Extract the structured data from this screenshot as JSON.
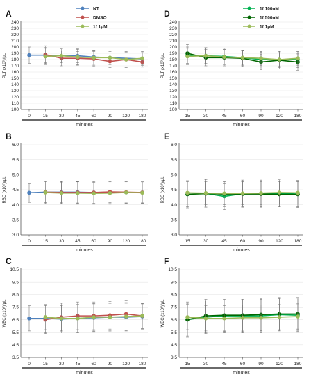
{
  "colors": {
    "NT": "#4f81bd",
    "DMSO": "#c0504d",
    "1f 1μM": "#9bbb59",
    "1f 100nM": "#00b050",
    "1f 500nM": "#006600",
    "axis": "#555555",
    "grid": "#e6e6e6",
    "error": "#777777"
  },
  "chart_data": [
    {
      "panel": "A",
      "type": "line",
      "ylabel": "PLT (x10³)/μL",
      "xlabel": "minutes",
      "x": [
        "0",
        "15",
        "30",
        "45",
        "60",
        "90",
        "120",
        "180"
      ],
      "ylim": [
        100,
        240
      ],
      "yticks": [
        100,
        110,
        120,
        130,
        140,
        150,
        160,
        170,
        180,
        190,
        200,
        210,
        220,
        230,
        240
      ],
      "legend_position": "top-left",
      "series": [
        {
          "name": "NT",
          "values": [
            187,
            187,
            null,
            186,
            184,
            183,
            null,
            181
          ],
          "err": [
            13,
            12,
            null,
            11,
            11,
            11,
            null,
            10
          ]
        },
        {
          "name": "DMSO",
          "values": [
            null,
            188,
            182,
            182,
            181,
            177,
            180,
            176
          ],
          "err": [
            null,
            14,
            12,
            11,
            12,
            10,
            13,
            8
          ]
        },
        {
          "name": "1f 1μM",
          "values": [
            null,
            185,
            186,
            184,
            183,
            183,
            180,
            182
          ],
          "err": [
            null,
            13,
            11,
            12,
            12,
            10,
            12,
            11
          ]
        }
      ]
    },
    {
      "panel": "B",
      "type": "line",
      "ylabel": "RBC (x10⁶)/μL",
      "xlabel": "minutes",
      "x": [
        "0",
        "15",
        "30",
        "45",
        "60",
        "90",
        "120",
        "180"
      ],
      "ylim": [
        3.0,
        6.0
      ],
      "yticks": [
        3.0,
        3.5,
        4.0,
        4.5,
        5.0,
        5.5,
        6.0
      ],
      "series": [
        {
          "name": "NT",
          "values": [
            4.4,
            4.42,
            4.42,
            4.42,
            4.41,
            4.42,
            4.41,
            4.41
          ],
          "err": [
            0.32,
            0.35,
            0.35,
            0.36,
            0.36,
            0.36,
            0.35,
            0.35
          ]
        },
        {
          "name": "DMSO",
          "values": [
            null,
            4.42,
            4.41,
            4.41,
            4.41,
            4.43,
            4.42,
            4.41
          ],
          "err": [
            null,
            0.36,
            0.36,
            0.36,
            0.38,
            0.36,
            0.36,
            0.35
          ]
        },
        {
          "name": "1f 1μM",
          "values": [
            null,
            4.41,
            4.39,
            4.39,
            4.38,
            4.39,
            4.41,
            4.4
          ],
          "err": [
            null,
            0.38,
            0.36,
            0.37,
            0.36,
            0.37,
            0.37,
            0.36
          ]
        }
      ]
    },
    {
      "panel": "C",
      "type": "line",
      "ylabel": "WBC (x10³)/μL",
      "xlabel": "minutes",
      "x": [
        "0",
        "15",
        "30",
        "45",
        "60",
        "90",
        "120",
        "180"
      ],
      "ylim": [
        3.5,
        10.5
      ],
      "yticks": [
        3.5,
        4.5,
        5.5,
        6.5,
        7.5,
        8.5,
        9.5,
        10.5
      ],
      "series": [
        {
          "name": "NT",
          "values": [
            6.6,
            6.6,
            6.55,
            6.6,
            6.65,
            6.7,
            6.7,
            6.75
          ],
          "err": [
            1.0,
            1.1,
            1.1,
            1.1,
            1.1,
            1.1,
            1.1,
            1.0
          ]
        },
        {
          "name": "DMSO",
          "values": [
            null,
            6.5,
            6.7,
            6.8,
            6.8,
            6.85,
            6.95,
            6.8
          ],
          "err": [
            null,
            1.1,
            1.1,
            1.1,
            1.1,
            1.1,
            1.1,
            1.0
          ]
        },
        {
          "name": "1f 1μM",
          "values": [
            null,
            6.7,
            6.6,
            6.6,
            6.7,
            6.7,
            6.75,
            6.8
          ],
          "err": [
            null,
            1.0,
            1.0,
            1.1,
            1.1,
            1.1,
            1.1,
            1.0
          ]
        }
      ]
    },
    {
      "panel": "D",
      "type": "line",
      "ylabel": "PLT (x10³)/μL",
      "xlabel": "minutes",
      "x": [
        "15",
        "30",
        "45",
        "60",
        "90",
        "120",
        "180"
      ],
      "ylim": [
        100,
        240
      ],
      "yticks": [
        100,
        110,
        120,
        130,
        140,
        150,
        160,
        170,
        180,
        190,
        200,
        210,
        220,
        230,
        240
      ],
      "legend_position": "top-left",
      "series": [
        {
          "name": "1f 100nM",
          "values": [
            187,
            186,
            185,
            183,
            180,
            180,
            180
          ],
          "err": [
            13,
            13,
            13,
            12,
            12,
            13,
            13
          ]
        },
        {
          "name": "1f 500nM",
          "values": [
            190,
            183,
            183,
            182,
            176,
            179,
            176
          ],
          "err": [
            14,
            13,
            13,
            13,
            12,
            14,
            13
          ]
        },
        {
          "name": "1f 1μM",
          "values": [
            185,
            186,
            184,
            183,
            182,
            180,
            182
          ],
          "err": [
            13,
            12,
            12,
            12,
            11,
            11,
            11
          ]
        }
      ]
    },
    {
      "panel": "E",
      "type": "line",
      "ylabel": "RBC (x10⁶)/μL",
      "xlabel": "minutes",
      "x": [
        "15",
        "30",
        "45",
        "60",
        "90",
        "120",
        "180"
      ],
      "ylim": [
        3.0,
        6.0
      ],
      "yticks": [
        3.0,
        3.5,
        4.0,
        4.5,
        5.0,
        5.5,
        6.0
      ],
      "series": [
        {
          "name": "1f 100nM",
          "values": [
            4.35,
            4.38,
            4.28,
            4.37,
            4.37,
            4.38,
            4.36
          ],
          "err": [
            0.45,
            0.46,
            0.44,
            0.45,
            0.45,
            0.45,
            0.45
          ]
        },
        {
          "name": "1f 500nM",
          "values": [
            4.35,
            4.37,
            4.36,
            4.36,
            4.36,
            4.35,
            4.35
          ],
          "err": [
            0.42,
            0.42,
            0.42,
            0.42,
            0.42,
            0.42,
            0.42
          ]
        },
        {
          "name": "1f 1μM",
          "values": [
            4.4,
            4.39,
            4.38,
            4.38,
            4.39,
            4.41,
            4.4
          ],
          "err": [
            0.38,
            0.38,
            0.38,
            0.38,
            0.38,
            0.38,
            0.37
          ]
        }
      ]
    },
    {
      "panel": "F",
      "type": "line",
      "ylabel": "WBC (x10³)/μL",
      "xlabel": "minutes",
      "x": [
        "15",
        "30",
        "45",
        "60",
        "90",
        "120",
        "180"
      ],
      "ylim": [
        3.5,
        10.5
      ],
      "yticks": [
        3.5,
        4.5,
        5.5,
        6.5,
        7.5,
        8.5,
        9.5,
        10.5
      ],
      "series": [
        {
          "name": "1f 100nM",
          "values": [
            6.5,
            6.7,
            6.8,
            6.8,
            6.8,
            6.9,
            6.85
          ],
          "err": [
            1.4,
            1.3,
            1.3,
            1.3,
            1.3,
            1.3,
            1.3
          ]
        },
        {
          "name": "1f 500nM",
          "values": [
            6.5,
            6.8,
            6.85,
            6.85,
            6.9,
            6.95,
            6.95
          ],
          "err": [
            1.3,
            1.3,
            1.3,
            1.3,
            1.3,
            1.3,
            1.3
          ]
        },
        {
          "name": "1f 1μM",
          "values": [
            6.7,
            6.6,
            6.6,
            6.65,
            6.65,
            6.7,
            6.75
          ],
          "err": [
            1.0,
            1.0,
            1.0,
            1.0,
            1.0,
            1.0,
            1.0
          ]
        }
      ]
    }
  ]
}
